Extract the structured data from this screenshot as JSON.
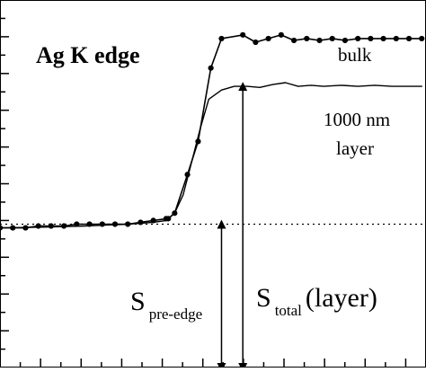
{
  "chart_data": {
    "type": "line",
    "title": "Ag K edge",
    "xlabel": "",
    "ylabel": "",
    "xlim": [
      0,
      100
    ],
    "ylim": [
      0,
      100
    ],
    "grid": false,
    "series": [
      {
        "name": "bulk",
        "color": "#000000",
        "marker": "filled-circle",
        "x": [
          0,
          3,
          6,
          9,
          12,
          15,
          18,
          21,
          24,
          27,
          30,
          33,
          36,
          39,
          39.5,
          41,
          44,
          46.5,
          49.5,
          52,
          57,
          60,
          63,
          66,
          69,
          72,
          75,
          78,
          81,
          84,
          87,
          90,
          93,
          96,
          99
        ],
        "y": [
          38,
          38,
          38,
          38.5,
          38.5,
          38.5,
          39,
          39,
          39,
          39,
          39,
          39.5,
          40,
          40.5,
          40.5,
          42,
          52.5,
          61.5,
          81.5,
          89.5,
          90.5,
          88.5,
          89.5,
          90.5,
          89,
          89.5,
          89,
          89.5,
          89,
          89.5,
          89.5,
          89.5,
          89.5,
          89.5,
          89.5
        ]
      },
      {
        "name": "1000 nm layer",
        "color": "#000000",
        "marker": "none",
        "x": [
          0,
          10,
          20,
          30,
          36,
          39,
          41,
          43,
          45,
          47,
          49,
          52,
          55,
          58,
          61,
          64,
          67,
          70,
          73,
          76,
          80,
          84,
          88,
          92,
          96,
          99
        ],
        "y": [
          38,
          38.2,
          38.5,
          39,
          39.5,
          40,
          42,
          47,
          56,
          65,
          73,
          75.5,
          76.5,
          76.5,
          76.2,
          77,
          77.5,
          76.5,
          76.8,
          76.5,
          76.8,
          76.5,
          76.8,
          76.5,
          76.5,
          76.5
        ]
      }
    ],
    "baseline": {
      "style": "dotted",
      "y": 39
    },
    "annotations": {
      "series_labels": [
        "bulk",
        "1000 nm",
        "layer"
      ],
      "pre_edge_label": {
        "main": "S",
        "sub": "pre-edge"
      },
      "total_label": {
        "main": "S",
        "sub": "total",
        "suffix": "(layer)"
      }
    },
    "arrows": [
      {
        "label": "pre-edge",
        "x": 52,
        "y_from": 0,
        "y_to": 39
      },
      {
        "label": "total",
        "x": 57,
        "y_from": 0,
        "y_to": 76.5
      }
    ]
  }
}
